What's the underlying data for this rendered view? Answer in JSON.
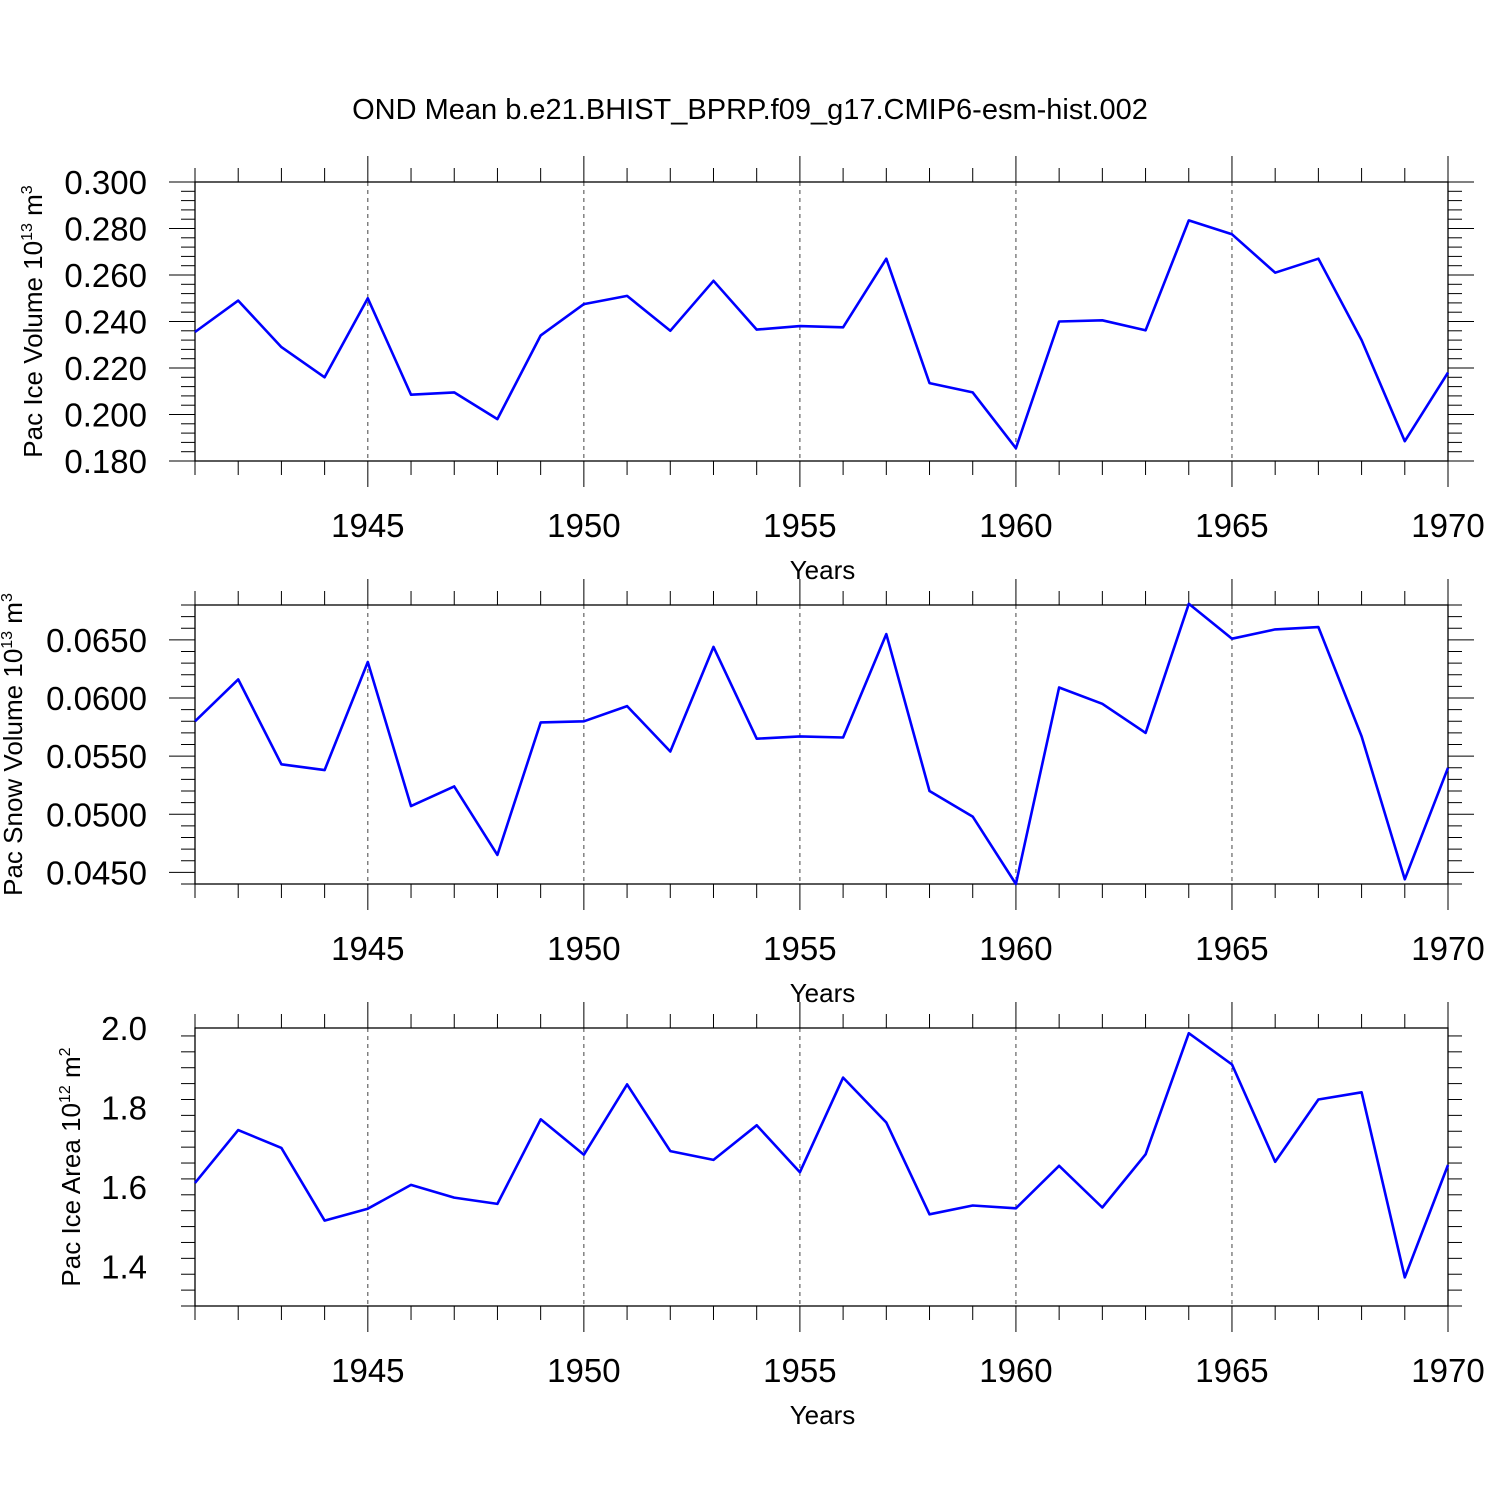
{
  "chart_data": {
    "title": "OND Mean b.e21.BHIST_BPRP.f09_g17.CMIP6-esm-hist.002",
    "type": "line",
    "x": [
      1941,
      1942,
      1943,
      1944,
      1945,
      1946,
      1947,
      1948,
      1949,
      1950,
      1951,
      1952,
      1953,
      1954,
      1955,
      1956,
      1957,
      1958,
      1959,
      1960,
      1961,
      1962,
      1963,
      1964,
      1965,
      1966,
      1967,
      1968,
      1969,
      1970
    ],
    "panels": [
      {
        "ylabel": {
          "main": "Pac Ice Volume 10",
          "exp": "13",
          "unit": " m",
          "unit_exp": "3"
        },
        "xlabel": "Years",
        "xlim": [
          1941,
          1970
        ],
        "ylim": [
          0.18,
          0.3
        ],
        "yticks": [
          0.18,
          0.2,
          0.22,
          0.24,
          0.26,
          0.28,
          0.3
        ],
        "ytick_labels": [
          "0.180",
          "0.200",
          "0.220",
          "0.240",
          "0.260",
          "0.280",
          "0.300"
        ],
        "xticks": [
          1945,
          1950,
          1955,
          1960,
          1965,
          1970
        ],
        "xtick_labels": [
          "1945",
          "1950",
          "1955",
          "1960",
          "1965",
          "1970"
        ],
        "grid": "vertical dashed at major x ticks",
        "values": [
          0.2355,
          0.249,
          0.229,
          0.216,
          0.25,
          0.2085,
          0.2095,
          0.198,
          0.234,
          0.2475,
          0.251,
          0.236,
          0.2575,
          0.2365,
          0.238,
          0.2375,
          0.267,
          0.2135,
          0.2095,
          0.1855,
          0.24,
          0.2405,
          0.2362,
          0.2835,
          0.2775,
          0.261,
          0.267,
          0.232,
          0.1885,
          0.218
        ]
      },
      {
        "ylabel": {
          "main": "Pac Snow Volume 10",
          "exp": "13",
          "unit": " m",
          "unit_exp": "3"
        },
        "xlabel": "Years",
        "xlim": [
          1941,
          1970
        ],
        "ylim": [
          0.044,
          0.068
        ],
        "yticks": [
          0.045,
          0.05,
          0.055,
          0.06,
          0.065
        ],
        "ytick_labels": [
          "0.0450",
          "0.0500",
          "0.0550",
          "0.0600",
          "0.0650"
        ],
        "xticks": [
          1945,
          1950,
          1955,
          1960,
          1965,
          1970
        ],
        "xtick_labels": [
          "1945",
          "1950",
          "1955",
          "1960",
          "1965",
          "1970"
        ],
        "grid": "vertical dashed at major x ticks",
        "values": [
          0.058,
          0.0616,
          0.0543,
          0.0538,
          0.0631,
          0.0507,
          0.0524,
          0.0465,
          0.0579,
          0.058,
          0.0593,
          0.0554,
          0.0644,
          0.0565,
          0.0567,
          0.0566,
          0.0655,
          0.052,
          0.0498,
          0.044,
          0.0609,
          0.0595,
          0.057,
          0.0681,
          0.0651,
          0.0659,
          0.0661,
          0.0567,
          0.0444,
          0.054
        ]
      },
      {
        "ylabel": {
          "main": "Pac Ice Area 10",
          "exp": "12",
          "unit": " m",
          "unit_exp": "2"
        },
        "xlabel": "Years",
        "xlim": [
          1941,
          1970
        ],
        "ylim": [
          1.3,
          2.0
        ],
        "yticks": [
          1.4,
          1.6,
          1.8,
          2.0
        ],
        "ytick_labels": [
          "1.4",
          "1.6",
          "1.8",
          "2.0"
        ],
        "xticks": [
          1945,
          1950,
          1955,
          1960,
          1965,
          1970
        ],
        "xtick_labels": [
          "1945",
          "1950",
          "1955",
          "1960",
          "1965",
          "1970"
        ],
        "grid": "vertical dashed at major x ticks",
        "values": [
          1.61,
          1.743,
          1.698,
          1.515,
          1.545,
          1.605,
          1.573,
          1.557,
          1.77,
          1.681,
          1.858,
          1.69,
          1.668,
          1.755,
          1.637,
          1.875,
          1.762,
          1.531,
          1.553,
          1.546,
          1.653,
          1.548,
          1.682,
          1.987,
          1.908,
          1.663,
          1.82,
          1.838,
          1.372,
          1.655
        ]
      }
    ],
    "series_color": "#0000ff"
  }
}
